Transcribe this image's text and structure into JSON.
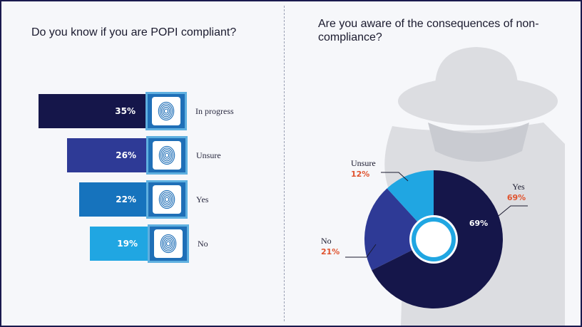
{
  "chart_data": [
    {
      "type": "bar",
      "title": "Do you know if you are POPI compliant?",
      "categories": [
        "In progress",
        "Unsure",
        "Yes",
        "No"
      ],
      "values": [
        35,
        26,
        22,
        19
      ],
      "value_labels": [
        "35%",
        "26%",
        "22%",
        "19%"
      ],
      "colors": [
        "#15164a",
        "#2e3a96",
        "#1673bd",
        "#20a6e2"
      ],
      "xlim": [
        0,
        35
      ]
    },
    {
      "type": "pie",
      "title": "Are you aware of the consequences of non-compliance?",
      "categories": [
        "Yes",
        "No",
        "Unsure"
      ],
      "values": [
        69,
        21,
        12
      ],
      "value_labels": [
        "69%",
        "21%",
        "12%"
      ],
      "inner_label": "69%",
      "colors": [
        "#15164a",
        "#2e3a96",
        "#20a6e2"
      ],
      "label_color": "#e0532e"
    }
  ],
  "colors": {
    "background": "#f6f7fa",
    "border": "#1a1a4e",
    "fingerprint_box": "#1f6fb7",
    "fingerprint_border": "#5fb0e0",
    "spy_figure": "#dcdde1"
  },
  "icons": {
    "fingerprint": "fingerprint-icon",
    "spy": "spy-figure-icon"
  }
}
